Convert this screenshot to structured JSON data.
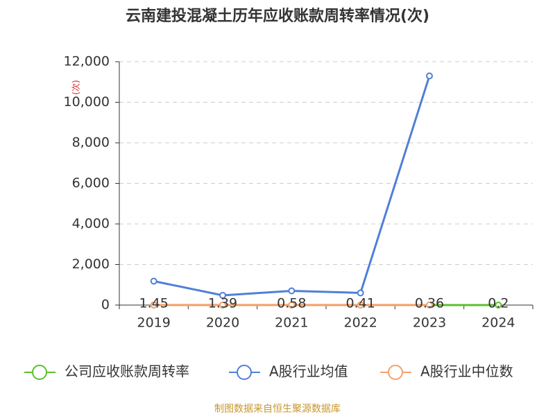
{
  "chart_data": {
    "type": "line",
    "title": "云南建投混凝土历年应收账款周转率情况(次)",
    "y_label": "(次)",
    "source": "制图数据来自恒生聚源数据库",
    "categories": [
      "2019",
      "2020",
      "2021",
      "2022",
      "2023",
      "2024"
    ],
    "series": [
      {
        "name": "公司应收账款周转率",
        "color": "#5cbf2a",
        "values": [
          1.45,
          1.39,
          0.58,
          0.41,
          0.36,
          0.2
        ],
        "show_labels": true
      },
      {
        "name": "A股行业均值",
        "color": "#4f7fd8",
        "values": [
          1180,
          480,
          700,
          600,
          11300,
          null
        ]
      },
      {
        "name": "A股行业中位数",
        "color": "#f5a06e",
        "values": [
          5,
          5,
          5,
          5,
          5,
          null
        ]
      }
    ],
    "ylim": [
      0,
      12000
    ],
    "yticks": [
      0,
      {
        "value": 2000,
        "label": "2,000"
      },
      {
        "value": 4000,
        "label": "4,000"
      },
      {
        "value": 6000,
        "label": "6,000"
      },
      {
        "value": 8000,
        "label": "8,000"
      },
      {
        "value": 10000,
        "label": "10,000"
      },
      {
        "value": 12000,
        "label": "12,000"
      }
    ],
    "grid": true
  }
}
